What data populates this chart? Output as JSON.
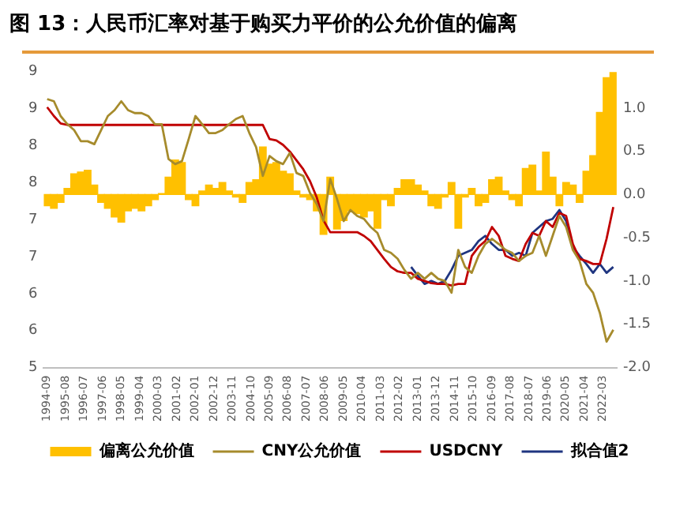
{
  "chart_data": {
    "type": "line",
    "title": "图 13：人民币汇率对基于购买力平价的公允价值的偏离",
    "x": [
      "1994-09",
      "1995-01",
      "1995-05",
      "1995-09",
      "1996-01",
      "1996-05",
      "1996-09",
      "1997-01",
      "1997-05",
      "1997-09",
      "1998-01",
      "1998-05",
      "1998-09",
      "1999-01",
      "1999-05",
      "1999-09",
      "2000-01",
      "2000-05",
      "2000-09",
      "2001-01",
      "2001-05",
      "2001-09",
      "2002-01",
      "2002-05",
      "2002-09",
      "2003-01",
      "2003-05",
      "2003-09",
      "2004-01",
      "2004-05",
      "2004-09",
      "2005-01",
      "2005-05",
      "2005-09",
      "2006-01",
      "2006-05",
      "2006-09",
      "2007-01",
      "2007-05",
      "2007-09",
      "2008-01",
      "2008-05",
      "2008-09",
      "2009-01",
      "2009-05",
      "2009-09",
      "2010-01",
      "2010-05",
      "2010-09",
      "2011-01",
      "2011-05",
      "2011-09",
      "2012-01",
      "2012-05",
      "2012-09",
      "2013-01",
      "2013-05",
      "2013-09",
      "2014-01",
      "2014-05",
      "2014-09",
      "2015-01",
      "2015-05",
      "2015-09",
      "2016-01",
      "2016-05",
      "2016-09",
      "2017-01",
      "2017-05",
      "2017-09",
      "2018-01",
      "2018-05",
      "2018-09",
      "2019-01",
      "2019-05",
      "2019-09",
      "2020-01",
      "2020-05",
      "2020-09",
      "2021-01",
      "2021-05",
      "2021-09",
      "2022-01",
      "2022-05",
      "2022-09"
    ],
    "xlim": [
      "1994-07",
      "2022-11"
    ],
    "xticks": [
      "1994-09",
      "1995-08",
      "1996-07",
      "1997-06",
      "1998-05",
      "1999-04",
      "2000-03",
      "2001-02",
      "2002-01",
      "2002-12",
      "2003-11",
      "2004-10",
      "2005-09",
      "2006-08",
      "2007-07",
      "2008-06",
      "2009-05",
      "2010-04",
      "2011-03",
      "2012-02",
      "2013-01",
      "2013-12",
      "2014-11",
      "2015-10",
      "2016-09",
      "2017-08",
      "2018-07",
      "2019-06",
      "2020-05",
      "2021-04",
      "2022-03"
    ],
    "ylim": [
      5,
      9
    ],
    "yticks": [
      5,
      {
        "value": 5.5,
        "label": "6"
      },
      6,
      {
        "value": 6.5,
        "label": "7"
      },
      7,
      {
        "value": 7.5,
        "label": "8"
      },
      8,
      {
        "value": 8.5,
        "label": "9"
      },
      9
    ],
    "y2lim": [
      -2,
      1.42
    ],
    "y2ticks": [
      {
        "value": -2,
        "label": "-2.0"
      },
      {
        "value": -1.5,
        "label": "-1.5"
      },
      {
        "value": -1,
        "label": "-1.0"
      },
      {
        "value": -0.5,
        "label": "-0.5"
      },
      {
        "value": 0,
        "label": "0.0"
      },
      {
        "value": 0.5,
        "label": "0.5"
      },
      {
        "value": 1,
        "label": "1.0"
      }
    ],
    "legend": "bottom",
    "series": [
      {
        "name": "偏离公允价值",
        "type": "bar",
        "axis": "y2",
        "color": "#ffc000",
        "values": [
          -0.13,
          -0.16,
          -0.09,
          0.07,
          0.24,
          0.26,
          0.28,
          0.11,
          -0.09,
          -0.16,
          -0.26,
          -0.32,
          -0.19,
          -0.16,
          -0.19,
          -0.13,
          -0.06,
          0.01,
          0.2,
          0.4,
          0.37,
          -0.06,
          -0.13,
          0.04,
          0.11,
          0.07,
          0.14,
          0.04,
          -0.03,
          -0.09,
          0.14,
          0.17,
          0.55,
          0.35,
          0.37,
          0.27,
          0.24,
          0.04,
          -0.03,
          -0.06,
          -0.19,
          -0.46,
          0.2,
          -0.4,
          -0.3,
          -0.19,
          -0.22,
          -0.26,
          -0.19,
          -0.39,
          -0.06,
          -0.13,
          0.07,
          0.17,
          0.17,
          0.11,
          0.04,
          -0.13,
          -0.16,
          -0.03,
          0.14,
          -0.39,
          -0.03,
          0.07,
          -0.13,
          -0.09,
          0.17,
          0.2,
          0.04,
          -0.06,
          -0.13,
          0.3,
          0.34,
          0.04,
          0.49,
          0.2,
          -0.13,
          0.14,
          0.11,
          -0.09,
          0.27,
          0.45,
          0.95,
          1.35,
          1.41
        ]
      },
      {
        "name": "CNY公允价值",
        "color": "#a68b2c",
        "values": [
          8.63,
          8.6,
          8.4,
          8.29,
          8.21,
          8.06,
          8.06,
          8.02,
          8.21,
          8.4,
          8.48,
          8.6,
          8.48,
          8.44,
          8.44,
          8.4,
          8.29,
          8.29,
          7.82,
          7.75,
          7.79,
          8.09,
          8.4,
          8.29,
          8.17,
          8.17,
          8.21,
          8.29,
          8.36,
          8.4,
          8.17,
          7.98,
          7.59,
          7.86,
          7.79,
          7.75,
          7.9,
          7.63,
          7.59,
          7.36,
          7.21,
          6.98,
          7.55,
          7.28,
          6.98,
          7.13,
          7.05,
          7.01,
          6.9,
          6.82,
          6.59,
          6.55,
          6.47,
          6.32,
          6.2,
          6.28,
          6.2,
          6.28,
          6.2,
          6.17,
          6.01,
          6.59,
          6.36,
          6.28,
          6.51,
          6.67,
          6.74,
          6.67,
          6.59,
          6.55,
          6.44,
          6.51,
          6.55,
          6.78,
          6.51,
          6.78,
          7.05,
          6.9,
          6.59,
          6.44,
          6.13,
          6.01,
          5.74,
          5.35,
          5.51
        ]
      },
      {
        "name": "USDCNY",
        "color": "#c00000",
        "values": [
          8.52,
          8.4,
          8.3,
          8.28,
          8.28,
          8.28,
          8.28,
          8.28,
          8.28,
          8.28,
          8.28,
          8.28,
          8.28,
          8.28,
          8.28,
          8.28,
          8.28,
          8.28,
          8.28,
          8.28,
          8.28,
          8.28,
          8.28,
          8.28,
          8.28,
          8.28,
          8.28,
          8.28,
          8.28,
          8.28,
          8.28,
          8.28,
          8.28,
          8.09,
          8.07,
          8.01,
          7.92,
          7.8,
          7.68,
          7.52,
          7.3,
          6.99,
          6.83,
          6.83,
          6.83,
          6.83,
          6.83,
          6.78,
          6.71,
          6.59,
          6.47,
          6.36,
          6.3,
          6.28,
          6.28,
          6.2,
          6.17,
          6.14,
          6.13,
          6.13,
          6.11,
          6.13,
          6.13,
          6.51,
          6.63,
          6.71,
          6.9,
          6.78,
          6.51,
          6.47,
          6.44,
          6.67,
          6.82,
          6.78,
          6.98,
          6.9,
          7.09,
          7.05,
          6.67,
          6.47,
          6.44,
          6.4,
          6.4,
          6.74,
          7.17
        ]
      },
      {
        "name": "拟合值2",
        "color": "#1f3580",
        "values": [
          null,
          null,
          null,
          null,
          null,
          null,
          null,
          null,
          null,
          null,
          null,
          null,
          null,
          null,
          null,
          null,
          null,
          null,
          null,
          null,
          null,
          null,
          null,
          null,
          null,
          null,
          null,
          null,
          null,
          null,
          null,
          null,
          null,
          null,
          null,
          null,
          null,
          null,
          null,
          null,
          null,
          null,
          null,
          null,
          null,
          null,
          null,
          null,
          null,
          null,
          null,
          null,
          null,
          null,
          6.36,
          6.24,
          6.13,
          6.17,
          6.13,
          6.17,
          6.32,
          6.51,
          6.55,
          6.59,
          6.71,
          6.78,
          6.67,
          6.59,
          6.59,
          6.51,
          6.55,
          6.51,
          6.82,
          6.9,
          6.98,
          7.01,
          7.13,
          6.98,
          6.63,
          6.51,
          6.4,
          6.28,
          6.4,
          6.28,
          6.36
        ]
      }
    ]
  }
}
